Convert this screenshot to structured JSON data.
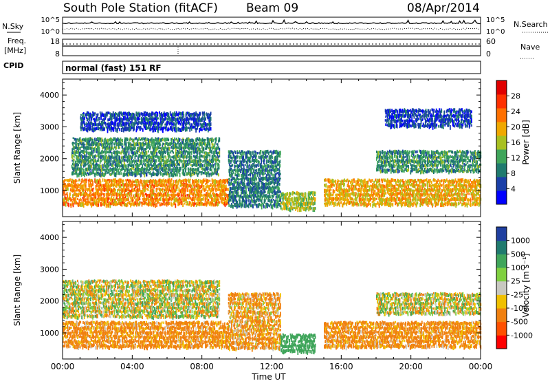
{
  "header": {
    "station": "South Pole Station (fitACF)",
    "beam": "Beam 09",
    "date": "08/Apr/2014"
  },
  "noise_panel": {
    "left_label": "N.Sky",
    "right_label": "N.Search",
    "ticks_left": [
      "10^5",
      "10^0"
    ],
    "ticks_right": [
      "10^5",
      "10^0"
    ]
  },
  "freq_panel": {
    "left_label_1": "Freq.",
    "left_label_2": "[MHz]",
    "right_label": "Nave",
    "ticks_left": [
      "18",
      "8"
    ],
    "ticks_right": [
      "60",
      "0"
    ]
  },
  "cpid": {
    "label": "CPID",
    "value": "normal (fast) 151 RF"
  },
  "x_axis": {
    "label": "Time UT",
    "ticks": [
      "00:00",
      "04:00",
      "08:00",
      "12:00",
      "16:00",
      "20:00",
      "00:00"
    ]
  },
  "y_axis": {
    "label": "Slant Range [km]",
    "ticks": [
      "1000",
      "2000",
      "3000",
      "4000"
    ]
  },
  "colorbar_power": {
    "label": "Power [dB]",
    "ticks": [
      "4",
      "8",
      "12",
      "16",
      "20",
      "24",
      "28"
    ],
    "colors": [
      "#0000ff",
      "#1a3fa8",
      "#1f7a6e",
      "#3fa55a",
      "#a8c020",
      "#f0a800",
      "#ff7000",
      "#ff3000",
      "#e00000"
    ]
  },
  "colorbar_velocity": {
    "label": "Velocity [m s⁻¹]",
    "ticks": [
      "1000",
      "500",
      "100",
      "25",
      "-25",
      "-100",
      "-500",
      "-1000"
    ],
    "colors": [
      "#1f3fa0",
      "#1f7a6e",
      "#3fa55a",
      "#80d040",
      "#c8c8c0",
      "#f0c000",
      "#f08010",
      "#ff5000",
      "#ff0000"
    ]
  },
  "chart_data": [
    {
      "type": "heatmap",
      "title": "Power [dB]",
      "xlabel": "Time UT",
      "ylabel": "Slant Range [km]",
      "xlim_hours": [
        0,
        24
      ],
      "ylim_km": [
        180,
        4500
      ],
      "features": [
        {
          "t0": 0.0,
          "t1": 9.5,
          "r0": 450,
          "r1": 1300,
          "value_db": 24
        },
        {
          "t0": 0.5,
          "t1": 9.0,
          "r0": 1400,
          "r1": 2600,
          "value_db": 12
        },
        {
          "t0": 1.0,
          "t1": 8.5,
          "r0": 2800,
          "r1": 3400,
          "value_db": 6
        },
        {
          "t0": 9.5,
          "t1": 12.5,
          "r0": 400,
          "r1": 2200,
          "value_db": 10
        },
        {
          "t0": 12.5,
          "t1": 14.5,
          "r0": 300,
          "r1": 900,
          "value_db": 18
        },
        {
          "t0": 15.0,
          "t1": 24.0,
          "r0": 450,
          "r1": 1300,
          "value_db": 22
        },
        {
          "t0": 18.0,
          "t1": 24.0,
          "r0": 1500,
          "r1": 2200,
          "value_db": 12
        },
        {
          "t0": 18.5,
          "t1": 23.5,
          "r0": 2900,
          "r1": 3500,
          "value_db": 6
        }
      ]
    },
    {
      "type": "heatmap",
      "title": "Velocity [m s⁻¹]",
      "xlabel": "Time UT",
      "ylabel": "Slant Range [km]",
      "xlim_hours": [
        0,
        24
      ],
      "ylim_km": [
        180,
        4500
      ],
      "features": [
        {
          "t0": 0.0,
          "t1": 9.5,
          "r0": 450,
          "r1": 1300,
          "value_ms": -200
        },
        {
          "t0": 0.0,
          "t1": 9.0,
          "r0": 1400,
          "r1": 2600,
          "value_ms": 0
        },
        {
          "t0": 9.5,
          "t1": 12.5,
          "r0": 400,
          "r1": 2200,
          "value_ms": -150
        },
        {
          "t0": 12.5,
          "t1": 14.5,
          "r0": 300,
          "r1": 900,
          "value_ms": 300
        },
        {
          "t0": 15.0,
          "t1": 24.0,
          "r0": 450,
          "r1": 1300,
          "value_ms": -200
        },
        {
          "t0": 18.0,
          "t1": 24.0,
          "r0": 1500,
          "r1": 2200,
          "value_ms": 0
        }
      ]
    }
  ]
}
